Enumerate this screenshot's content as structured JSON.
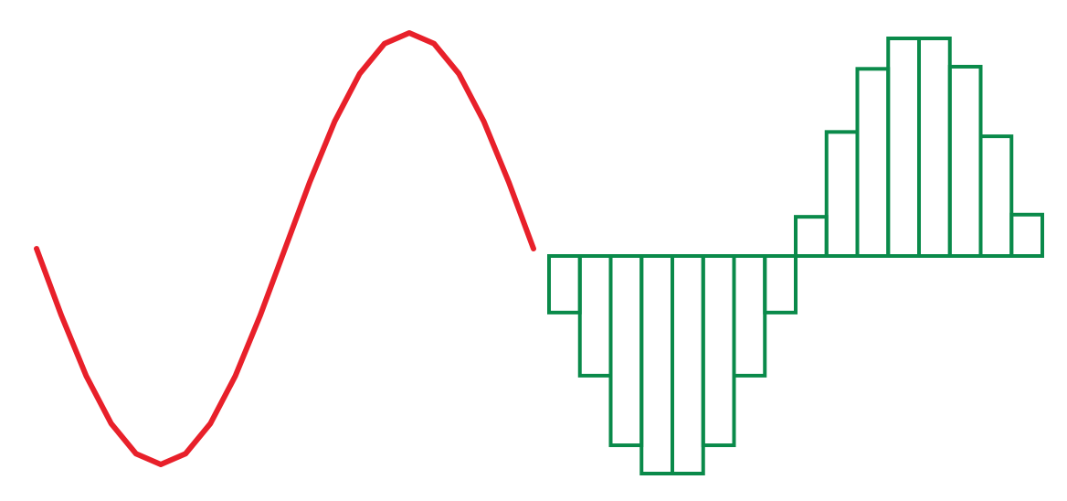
{
  "chart_data": [
    {
      "type": "line",
      "color": "#e8202a",
      "x": [
        0,
        0.05,
        0.1,
        0.15,
        0.2,
        0.25,
        0.3,
        0.35,
        0.4,
        0.45,
        0.5,
        0.55,
        0.6,
        0.65,
        0.7,
        0.75,
        0.8,
        0.85,
        0.9,
        0.95,
        1
      ],
      "values": [
        0,
        -0.31,
        -0.59,
        -0.81,
        -0.95,
        -1,
        -0.95,
        -0.81,
        -0.59,
        -0.31,
        0,
        0.31,
        0.59,
        0.81,
        0.95,
        1,
        0.95,
        0.81,
        0.59,
        0.31,
        0
      ],
      "xlim": [
        0,
        1
      ],
      "ylim": [
        -1,
        1
      ]
    },
    {
      "type": "bar",
      "color": "#0a8a4a",
      "categories": [
        null,
        null,
        null,
        null,
        null,
        null,
        null,
        null,
        null,
        null,
        null,
        null,
        null,
        null,
        null,
        null
      ],
      "values": [
        -0.26,
        -0.55,
        -0.87,
        -1,
        -1,
        -0.87,
        -0.55,
        -0.26,
        0.18,
        0.57,
        0.86,
        1,
        1,
        0.87,
        0.55,
        0.19
      ],
      "ylim": [
        -1,
        1
      ]
    }
  ]
}
